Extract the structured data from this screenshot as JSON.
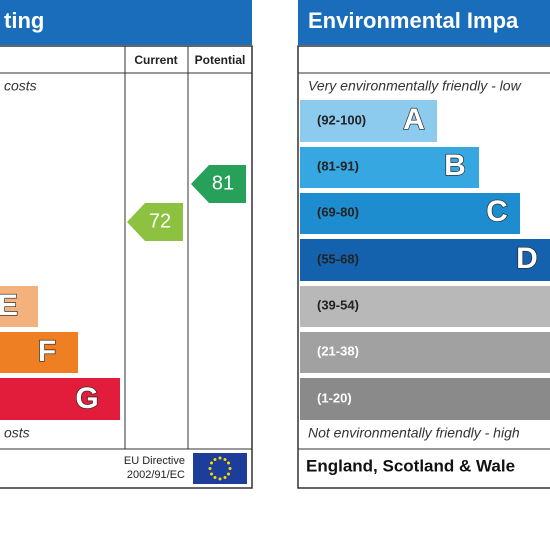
{
  "energy": {
    "title": "ting",
    "columns": [
      "Current",
      "Potential"
    ],
    "top_note": "costs",
    "bands": [
      {
        "letter": "E"
      },
      {
        "letter": "F"
      },
      {
        "letter": "G"
      }
    ],
    "bottom_note": "osts",
    "current": 72,
    "potential": 81,
    "directive": [
      "EU Directive",
      "2002/91/EC"
    ]
  },
  "environment": {
    "title": "Environmental Impa",
    "top_note": "Very environmentally friendly - low",
    "bands": [
      {
        "range": "(92-100)",
        "letter": "A"
      },
      {
        "range": "(81-91)",
        "letter": "B"
      },
      {
        "range": "(69-80)",
        "letter": "C"
      },
      {
        "range": "(55-68)",
        "letter": "D"
      },
      {
        "range": "(39-54)"
      },
      {
        "range": "(21-38)"
      },
      {
        "range": "(1-20)"
      }
    ],
    "bottom_note": "Not environmentally friendly - high",
    "region": "England, Scotland & Wale"
  }
}
